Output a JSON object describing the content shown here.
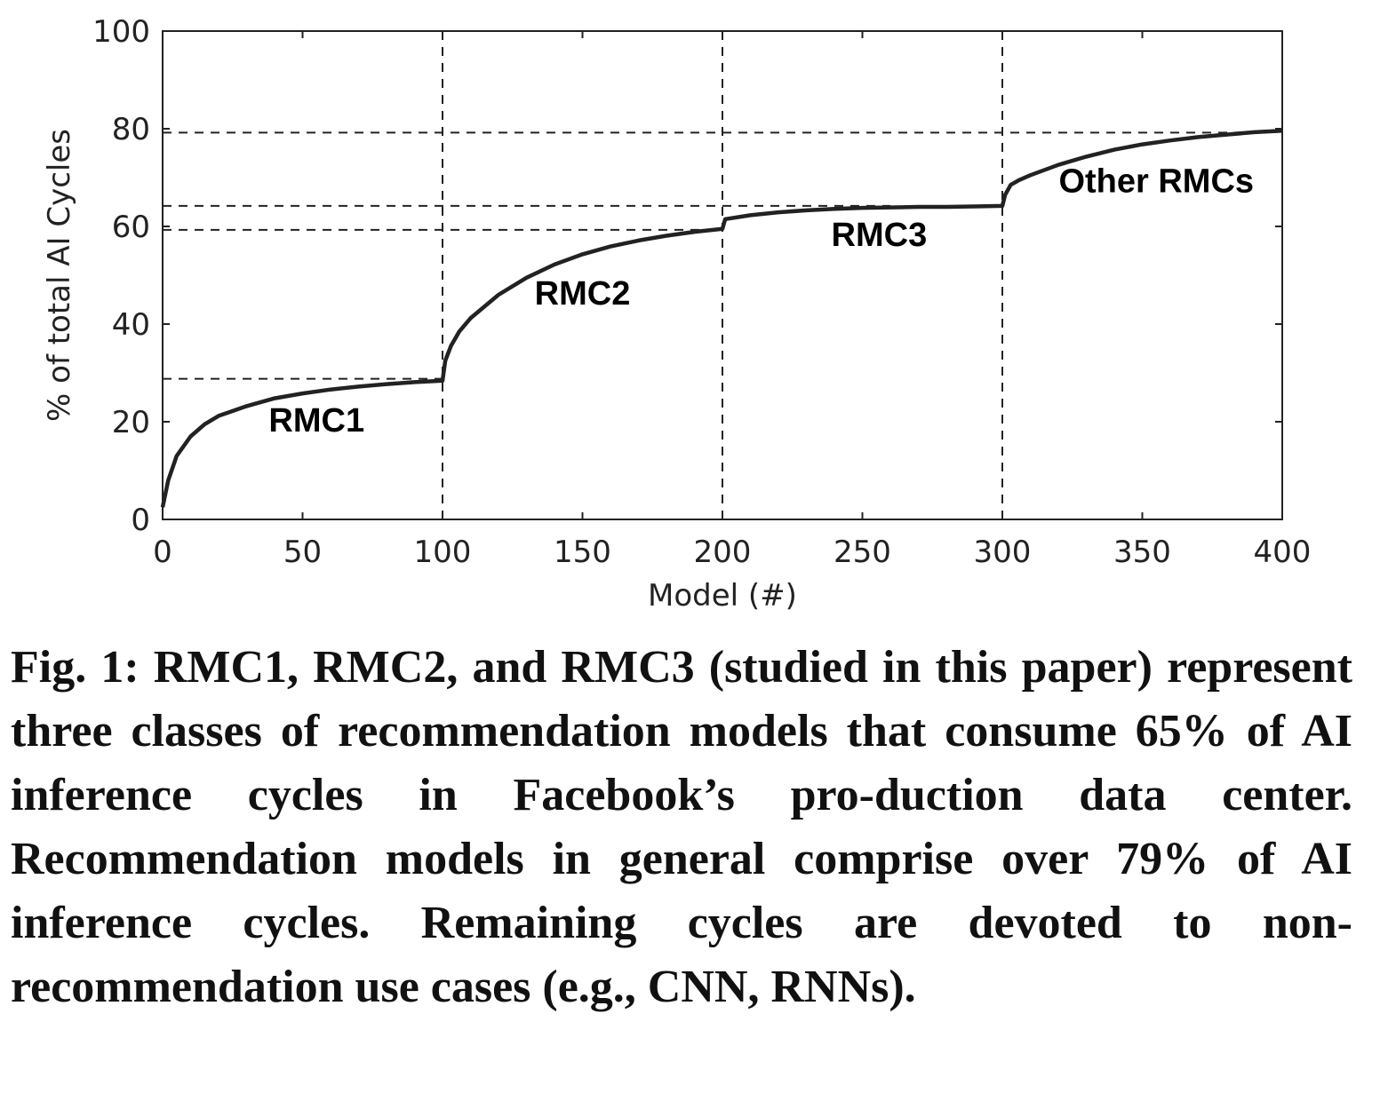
{
  "chart_data": {
    "type": "line",
    "xlabel": "Model (#)",
    "ylabel": "% of total AI Cycles",
    "xlim": [
      0,
      400
    ],
    "ylim": [
      0,
      100
    ],
    "x_ticks": [
      "0",
      "50",
      "100",
      "150",
      "200",
      "250",
      "300",
      "350",
      "400"
    ],
    "y_ticks": [
      "0",
      "20",
      "40",
      "60",
      "80",
      "100"
    ],
    "series": [
      {
        "x": [
          0,
          2,
          5,
          10,
          15,
          20,
          30,
          40,
          50,
          60,
          70,
          80,
          90,
          100,
          101,
          103,
          106,
          110,
          120,
          130,
          140,
          150,
          160,
          170,
          180,
          190,
          200,
          201,
          210,
          220,
          230,
          240,
          250,
          260,
          270,
          280,
          290,
          300,
          301,
          303,
          306,
          310,
          320,
          330,
          340,
          350,
          360,
          370,
          380,
          390,
          400
        ],
        "y": [
          2.5,
          8,
          13,
          17,
          19.5,
          21.2,
          23.2,
          24.8,
          25.8,
          26.6,
          27.2,
          27.7,
          28.1,
          28.4,
          32.5,
          35.5,
          38.5,
          41.2,
          46,
          49.5,
          52.2,
          54.3,
          55.9,
          57.1,
          58.1,
          58.9,
          59.5,
          61.5,
          62.3,
          62.9,
          63.3,
          63.6,
          63.8,
          63.9,
          64,
          64,
          64.1,
          64.2,
          66.5,
          68.5,
          69.5,
          70.5,
          72.6,
          74.3,
          75.7,
          76.8,
          77.6,
          78.3,
          78.8,
          79.3,
          79.6
        ]
      }
    ],
    "reference_lines": {
      "vertical_x": [
        100,
        200,
        300
      ],
      "horizontal_y": [
        28.8,
        59.3,
        64.2,
        79.2
      ]
    },
    "annotations": [
      {
        "text": "RMC1",
        "x": 55,
        "y": 18
      },
      {
        "text": "RMC2",
        "x": 150,
        "y": 44
      },
      {
        "text": "RMC3",
        "x": 256,
        "y": 56
      },
      {
        "text": "Other RMCs",
        "x": 355,
        "y": 67
      }
    ],
    "grid": false,
    "line_color": "#222222"
  },
  "caption": "Fig. 1: RMC1, RMC2, and RMC3 (studied in this paper) represent three classes of recommendation models that consume 65% of AI inference cycles in Facebook’s pro-duction data center. Recommendation models in general comprise over 79% of AI inference cycles. Remaining cycles are devoted to non-recommendation use cases (e.g., CNN, RNNs)."
}
